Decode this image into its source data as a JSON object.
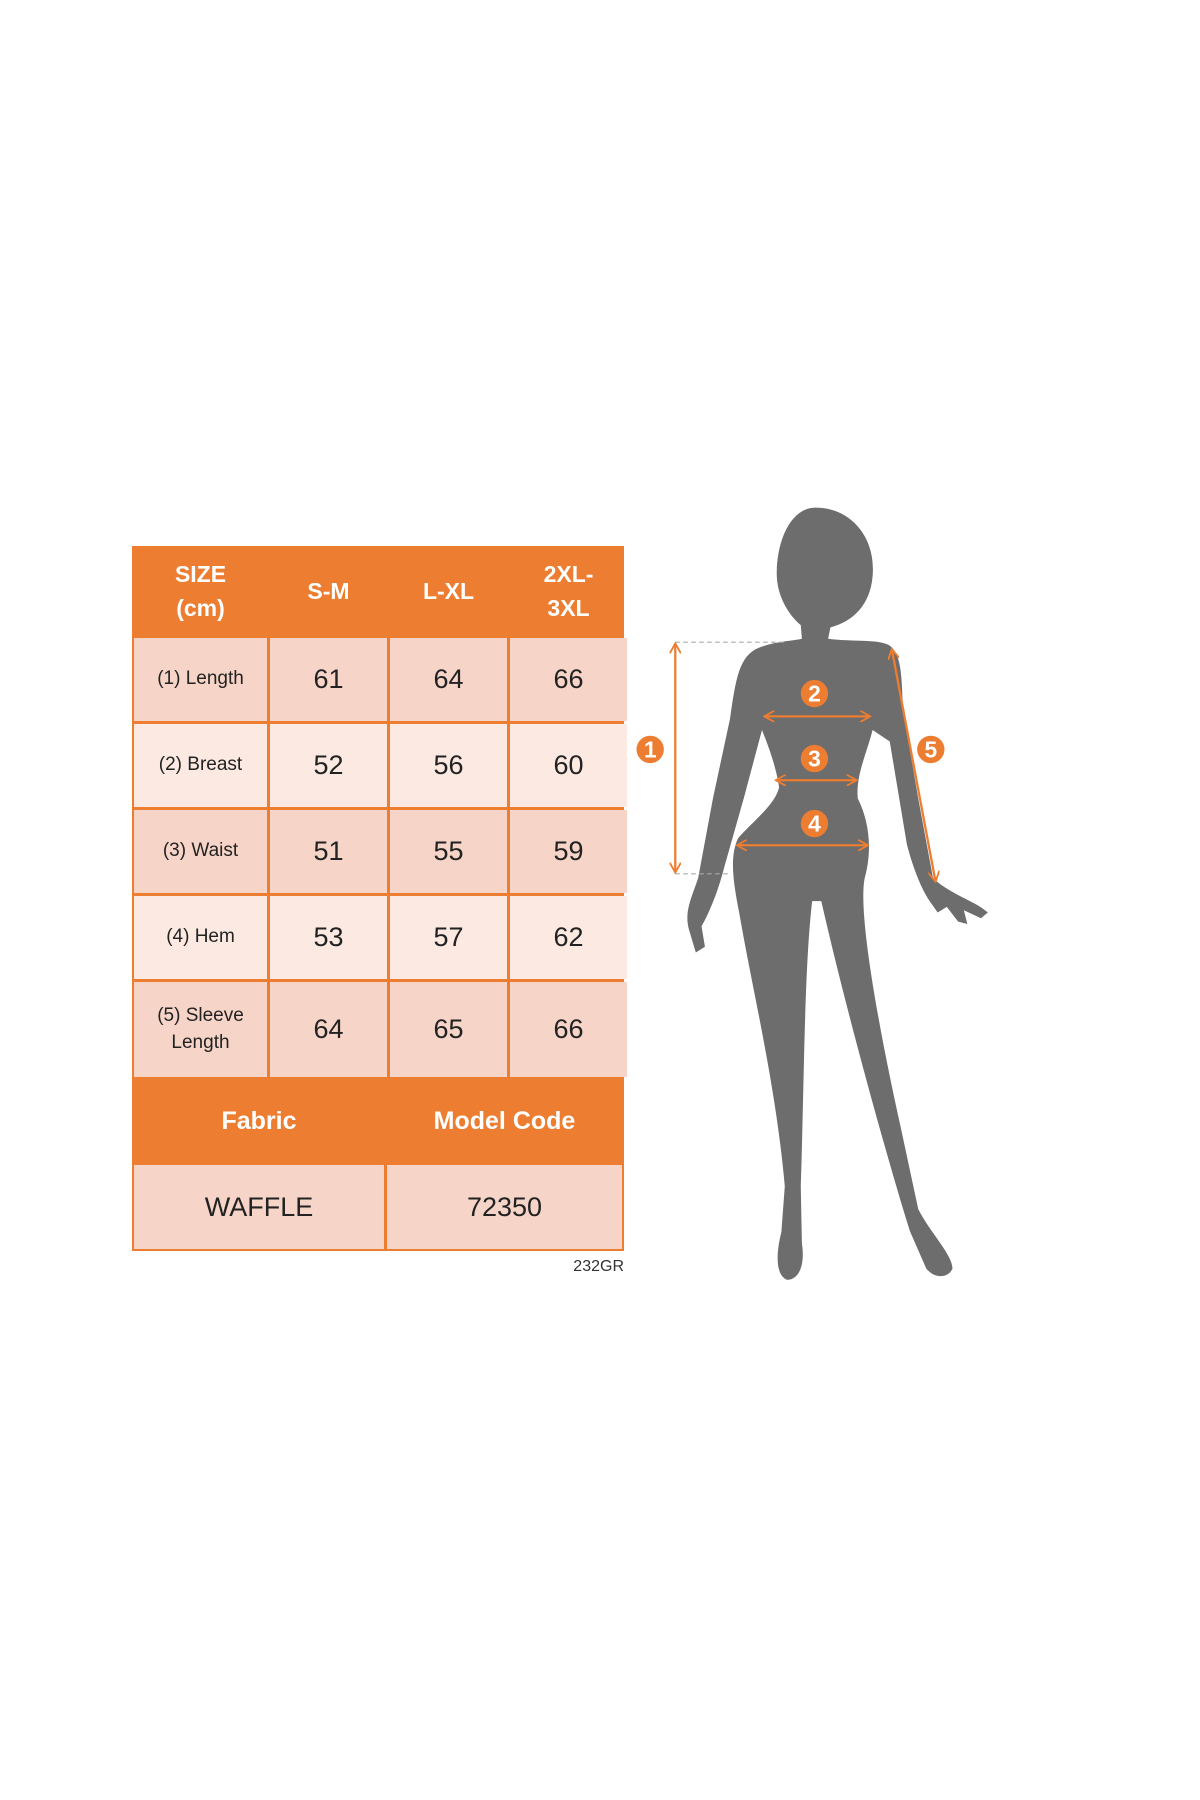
{
  "table": {
    "header": [
      "SIZE\n(cm)",
      "S-M",
      "L-XL",
      "2XL-\n3XL"
    ],
    "rows": [
      {
        "label": "(1) Length",
        "values": [
          "61",
          "64",
          "66"
        ]
      },
      {
        "label": "(2) Breast",
        "values": [
          "52",
          "56",
          "60"
        ]
      },
      {
        "label": "(3) Waist",
        "values": [
          "51",
          "55",
          "59"
        ]
      },
      {
        "label": "(4) Hem",
        "values": [
          "53",
          "57",
          "62"
        ]
      },
      {
        "label": "(5) Sleeve\nLength",
        "values": [
          "64",
          "65",
          "66"
        ]
      }
    ],
    "footer": {
      "fabric_label": "Fabric",
      "model_code_label": "Model Code",
      "fabric_value": "WAFFLE",
      "model_code_value": "72350"
    }
  },
  "reference_code": "232GR",
  "figure": {
    "markers": [
      "1",
      "2",
      "3",
      "4",
      "5"
    ],
    "silhouette_color": "#6d6d6d",
    "accent_color": "#ed7d31"
  },
  "colors": {
    "header": "#ed7d31",
    "row_dark": "#f6d4c7",
    "row_light": "#fbe9e2"
  }
}
